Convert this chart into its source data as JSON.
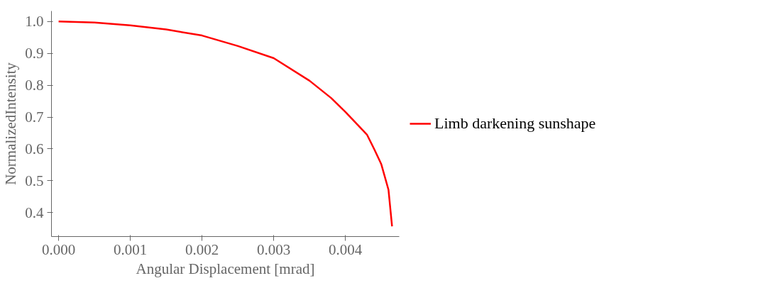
{
  "chart_data": {
    "type": "line",
    "xlabel": "Angular Displacement [mrad]",
    "ylabel": "NormalizedIntensity",
    "x": [
      0,
      0.0005,
      0.001,
      0.0015,
      0.002,
      0.0025,
      0.003,
      0.0035,
      0.0038,
      0.004,
      0.0043,
      0.0044,
      0.0045,
      0.0046,
      0.00465
    ],
    "series": [
      {
        "name": "Limb darkening sunshape",
        "color": "#ff0000",
        "values": [
          1.0,
          0.997,
          0.988,
          0.975,
          0.956,
          0.923,
          0.885,
          0.814,
          0.76,
          0.716,
          0.645,
          0.6,
          0.552,
          0.472,
          0.357
        ]
      }
    ],
    "xlim": [
      -0.0001,
      0.00475
    ],
    "ylim": [
      0.325,
      1.033
    ],
    "xticks": [
      {
        "value": 0,
        "label": "0.000"
      },
      0.001,
      0.002,
      0.003,
      0.004
    ],
    "yticks": [
      0.4,
      0.5,
      0.6,
      0.7,
      0.8,
      0.9,
      {
        "value": 1.0,
        "label": "1.0"
      }
    ],
    "grid": false,
    "legend": "right",
    "line_style": "solid",
    "marker": "none"
  }
}
